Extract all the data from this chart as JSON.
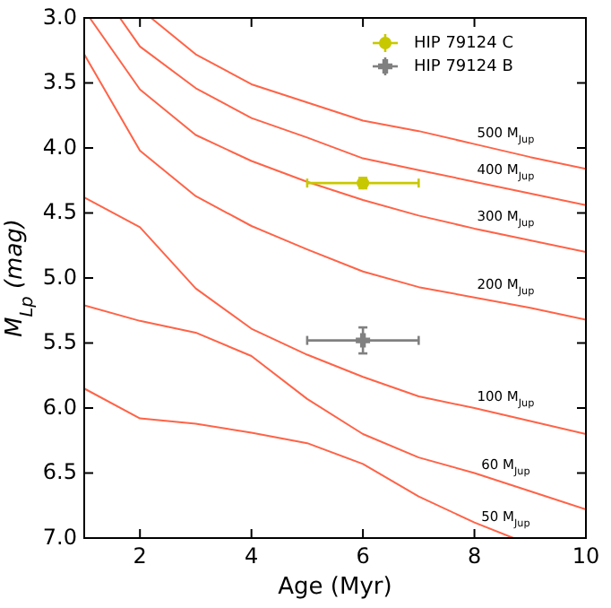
{
  "chart_data": {
    "type": "line",
    "xlabel": "Age (Myr)",
    "ylabel": "M$_{Lp}$ (mag)",
    "xlim": [
      1,
      10
    ],
    "ylim": [
      7,
      3
    ],
    "xticks": [
      2,
      4,
      6,
      8,
      10
    ],
    "yticks": [
      {
        "value": 3,
        "label": "3.0"
      },
      {
        "value": 3.5,
        "label": "3.5"
      },
      {
        "value": 4,
        "label": "4.0"
      },
      {
        "value": 4.5,
        "label": "4.5"
      },
      {
        "value": 5,
        "label": "5.0"
      },
      {
        "value": 5.5,
        "label": "5.5"
      },
      {
        "value": 6,
        "label": "6.0"
      },
      {
        "value": 6.5,
        "label": "6.5"
      },
      {
        "value": 7,
        "label": "7.0"
      }
    ],
    "grid": false,
    "legend": "top right",
    "marker": "none",
    "line_style": "solid",
    "series": [
      {
        "name": "500 M$_{Jup}$",
        "color": "#ff6347",
        "x": [
          2.2,
          3,
          4,
          5,
          6,
          7,
          8,
          9,
          10
        ],
        "values": [
          3,
          3.28,
          3.51,
          3.65,
          3.79,
          3.87,
          3.97,
          4.07,
          4.16
        ]
      },
      {
        "name": "400 M$_{Jup}$",
        "color": "#ff6347",
        "x": [
          1.64,
          2,
          3,
          4,
          5,
          6,
          7,
          8,
          9,
          10
        ],
        "values": [
          3,
          3.22,
          3.54,
          3.77,
          3.92,
          4.08,
          4.17,
          4.26,
          4.35,
          4.44
        ]
      },
      {
        "name": "300 M$_{Jup}$",
        "color": "#ff6347",
        "x": [
          1.1,
          2,
          3,
          4,
          5,
          6,
          7,
          8,
          9,
          10
        ],
        "values": [
          3,
          3.55,
          3.9,
          4.1,
          4.26,
          4.4,
          4.52,
          4.62,
          4.71,
          4.8
        ]
      },
      {
        "name": "200 M$_{Jup}$",
        "color": "#ff6347",
        "x": [
          1,
          2,
          3,
          4,
          5,
          6,
          7,
          8,
          9,
          10
        ],
        "values": [
          3.28,
          4.02,
          4.37,
          4.6,
          4.78,
          4.95,
          5.07,
          5.15,
          5.23,
          5.32
        ]
      },
      {
        "name": "100 M$_{Jup}$",
        "color": "#ff6347",
        "x": [
          1,
          2,
          3,
          4,
          5,
          6,
          7,
          8,
          9,
          10
        ],
        "values": [
          4.38,
          4.61,
          5.08,
          5.39,
          5.59,
          5.76,
          5.91,
          6.0,
          6.1,
          6.2
        ]
      },
      {
        "name": "60 M$_{Jup}$",
        "color": "#ff6347",
        "x": [
          1,
          2,
          3,
          4,
          5,
          6,
          7,
          8,
          9,
          10
        ],
        "values": [
          5.21,
          5.33,
          5.42,
          5.6,
          5.93,
          6.2,
          6.38,
          6.5,
          6.64,
          6.78
        ]
      },
      {
        "name": "50 M$_{Jup}$",
        "color": "#ff6347",
        "x": [
          1,
          2,
          3,
          4,
          5,
          6,
          7,
          8,
          8.7
        ],
        "values": [
          5.85,
          6.08,
          6.12,
          6.19,
          6.27,
          6.43,
          6.68,
          6.88,
          7
        ]
      },
      {
        "type": "scatter",
        "name": "HIP 79124 C",
        "color": "#c8c800",
        "marker": "circle",
        "x": [
          6
        ],
        "values": [
          4.27
        ],
        "errors": [
          0.04
        ],
        "xerrors": [
          1
        ]
      },
      {
        "type": "scatter",
        "name": "HIP 79124 B",
        "color": "#808080",
        "marker": "cross",
        "x": [
          6
        ],
        "values": [
          5.48
        ],
        "errors": [
          0.1
        ],
        "xerrors": [
          1
        ]
      }
    ]
  }
}
